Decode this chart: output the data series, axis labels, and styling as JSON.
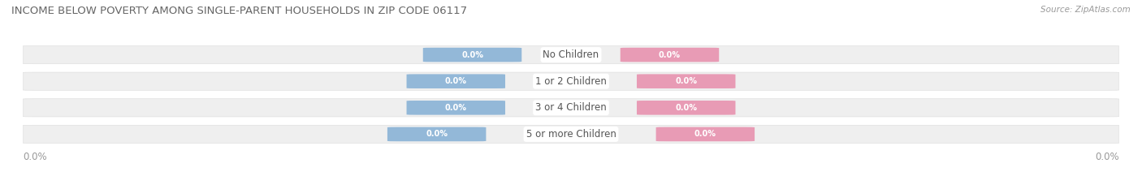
{
  "title": "INCOME BELOW POVERTY AMONG SINGLE-PARENT HOUSEHOLDS IN ZIP CODE 06117",
  "source": "Source: ZipAtlas.com",
  "categories": [
    "No Children",
    "1 or 2 Children",
    "3 or 4 Children",
    "5 or more Children"
  ],
  "single_father_values": [
    0.0,
    0.0,
    0.0,
    0.0
  ],
  "single_mother_values": [
    0.0,
    0.0,
    0.0,
    0.0
  ],
  "father_color": "#93b8d8",
  "mother_color": "#e89bb5",
  "row_bg_color": "#efefef",
  "row_border_color": "#e0e0e0",
  "title_color": "#666666",
  "source_color": "#999999",
  "axis_label_color": "#999999",
  "cat_label_color": "#555555",
  "background_color": "#ffffff",
  "figwidth": 14.06,
  "figheight": 2.33
}
